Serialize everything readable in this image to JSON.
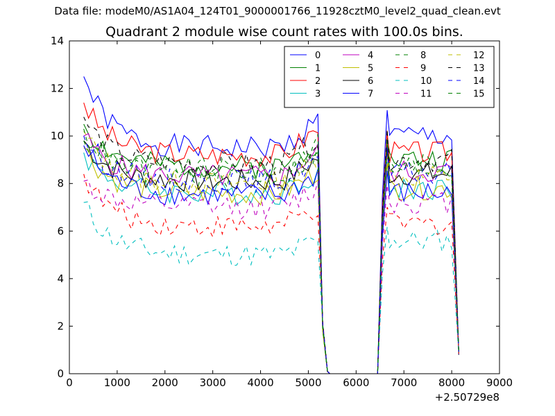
{
  "header": {
    "suptitle": "Data file: modeM0/AS1A04_124T01_9000001766_11928cztM0_level2_quad_clean.evt"
  },
  "chart_data": {
    "type": "line",
    "title": "Quadrant 2 module wise count rates with 100.0s bins.",
    "xlabel": "",
    "ylabel": "",
    "x_offset_label": "+2.50729e8",
    "xlim": [
      0,
      9000
    ],
    "ylim": [
      0,
      14
    ],
    "xticks": [
      0,
      1000,
      2000,
      3000,
      4000,
      5000,
      6000,
      7000,
      8000,
      9000
    ],
    "yticks": [
      0,
      2,
      4,
      6,
      8,
      10,
      12,
      14
    ],
    "grid": false,
    "legend_position": "top-right",
    "legend_columns": 4,
    "series": [
      {
        "name": "0",
        "color": "#0000ff",
        "style": "solid",
        "level": 9.5,
        "start": 12.5,
        "seg2": 10.0
      },
      {
        "name": "1",
        "color": "#008000",
        "style": "solid",
        "level": 8.7,
        "start": 10.5,
        "seg2": 9.0
      },
      {
        "name": "2",
        "color": "#ff0000",
        "style": "solid",
        "level": 9.2,
        "start": 11.4,
        "seg2": 9.3
      },
      {
        "name": "3",
        "color": "#00bfbf",
        "style": "solid",
        "level": 7.6,
        "start": 9.3,
        "seg2": 7.8
      },
      {
        "name": "4",
        "color": "#bf00bf",
        "style": "solid",
        "level": 8.3,
        "start": 10.0,
        "seg2": 8.5
      },
      {
        "name": "5",
        "color": "#bfbf00",
        "style": "solid",
        "level": 7.6,
        "start": 9.5,
        "seg2": 7.8
      },
      {
        "name": "6",
        "color": "#000000",
        "style": "solid",
        "level": 8.1,
        "start": 9.8,
        "seg2": 8.4
      },
      {
        "name": "7",
        "color": "#0000ff",
        "style": "solid",
        "level": 7.5,
        "start": 9.6,
        "seg2": 7.6
      },
      {
        "name": "8",
        "color": "#008000",
        "style": "dashed",
        "level": 8.6,
        "start": 9.8,
        "seg2": 8.8
      },
      {
        "name": "9",
        "color": "#ff0000",
        "style": "dashed",
        "level": 6.2,
        "start": 8.4,
        "seg2": 6.3
      },
      {
        "name": "10",
        "color": "#00bfbf",
        "style": "dashed",
        "level": 5.0,
        "start": 7.2,
        "seg2": 5.6
      },
      {
        "name": "11",
        "color": "#bf00bf",
        "style": "dashed",
        "level": 7.0,
        "start": 8.1,
        "seg2": 7.2
      },
      {
        "name": "12",
        "color": "#bfbf00",
        "style": "dashed",
        "level": 8.0,
        "start": 10.2,
        "seg2": 8.3
      },
      {
        "name": "13",
        "color": "#000000",
        "style": "dashed",
        "level": 8.8,
        "start": 10.8,
        "seg2": 9.0
      },
      {
        "name": "14",
        "color": "#0000ff",
        "style": "dashed",
        "level": 8.1,
        "start": 10.0,
        "seg2": 8.4
      },
      {
        "name": "15",
        "color": "#008000",
        "style": "dashed",
        "level": 8.3,
        "start": 10.3,
        "seg2": 8.6
      }
    ],
    "time_profile": {
      "seg1_x": [
        300,
        5200
      ],
      "seg1_end": 9.8,
      "drop_x": [
        5300,
        5400
      ],
      "zero_x": [
        5450,
        6450
      ],
      "rise_x": [
        6550,
        6650
      ],
      "seg2_x": [
        6700,
        8050
      ],
      "seg2_end_x": 8150,
      "seg2_end": 0.8,
      "step": 100
    }
  }
}
